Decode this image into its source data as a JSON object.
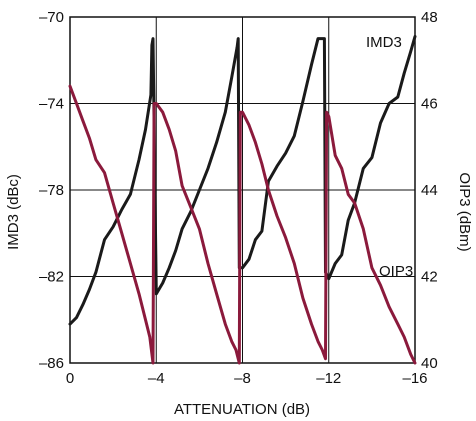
{
  "chart_data": {
    "type": "line",
    "xlabel": "ATTENUATION (dB)",
    "ylabel_left": "IMD3 (dBc)",
    "ylabel_right": "OIP3 (dBm)",
    "xlim": [
      0,
      -16
    ],
    "ylim_left": [
      -86,
      -70
    ],
    "ylim_right": [
      40,
      48
    ],
    "x_ticks": [
      "0",
      "–4",
      "–8",
      "–12",
      "–16"
    ],
    "y_left_ticks": [
      "–70",
      "–74",
      "–78",
      "–82",
      "–86"
    ],
    "y_right_ticks": [
      "48",
      "46",
      "44",
      "42",
      "40"
    ],
    "grid": true,
    "series": [
      {
        "name": "IMD3",
        "axis": "left",
        "color": "#1a1a1a",
        "x": [
          0,
          -0.3,
          -0.6,
          -0.9,
          -1.2,
          -1.6,
          -2.0,
          -2.4,
          -2.8,
          -3.2,
          -3.5,
          -3.75,
          -3.8,
          -3.85,
          -4.0,
          -4.3,
          -4.6,
          -4.9,
          -5.2,
          -5.6,
          -6.0,
          -6.4,
          -6.8,
          -7.2,
          -7.5,
          -7.75,
          -7.8,
          -7.85,
          -8.0,
          -8.3,
          -8.6,
          -8.9,
          -9.2,
          -9.6,
          -10.0,
          -10.4,
          -10.8,
          -11.2,
          -11.5,
          -11.75,
          -11.8,
          -11.85,
          -12.0,
          -12.3,
          -12.6,
          -12.9,
          -13.2,
          -13.6,
          -14.0,
          -14.4,
          -14.8,
          -15.2,
          -15.5,
          -15.8,
          -16.0
        ],
        "y": [
          -84.2,
          -83.9,
          -83.3,
          -82.6,
          -81.8,
          -80.3,
          -79.7,
          -78.9,
          -78.2,
          -76.6,
          -75.2,
          -73.6,
          -71.3,
          -71.0,
          -82.8,
          -82.3,
          -81.6,
          -80.8,
          -79.8,
          -79.0,
          -78.0,
          -77.0,
          -75.8,
          -74.4,
          -72.8,
          -71.4,
          -71.0,
          -81.6,
          -81.6,
          -81.2,
          -80.3,
          -79.9,
          -77.6,
          -76.9,
          -76.3,
          -75.5,
          -73.9,
          -72.2,
          -71.0,
          -71.0,
          -71.0,
          -81.8,
          -82.1,
          -81.4,
          -81.0,
          -79.4,
          -78.6,
          -77.0,
          -76.5,
          -74.9,
          -74.0,
          -73.7,
          -72.6,
          -71.6,
          -70.9
        ]
      },
      {
        "name": "OIP3",
        "axis": "right",
        "color": "#8b1a3c",
        "x": [
          0,
          -0.3,
          -0.6,
          -0.9,
          -1.2,
          -1.6,
          -2.0,
          -2.4,
          -2.8,
          -3.2,
          -3.5,
          -3.7,
          -3.85,
          -3.9,
          -4.0,
          -4.3,
          -4.6,
          -4.9,
          -5.2,
          -5.6,
          -6.0,
          -6.4,
          -6.8,
          -7.2,
          -7.5,
          -7.7,
          -7.85,
          -7.9,
          -8.0,
          -8.3,
          -8.6,
          -8.9,
          -9.2,
          -9.6,
          -10.0,
          -10.4,
          -10.8,
          -11.2,
          -11.5,
          -11.7,
          -11.85,
          -11.9,
          -12.0,
          -12.3,
          -12.6,
          -12.9,
          -13.2,
          -13.6,
          -14.0,
          -14.4,
          -14.8,
          -15.2,
          -15.5,
          -15.8,
          -16.0
        ],
        "y": [
          46.4,
          46.0,
          45.6,
          45.2,
          44.7,
          44.4,
          43.7,
          43.0,
          42.3,
          41.6,
          41.0,
          40.6,
          40.0,
          46.0,
          46.0,
          45.8,
          45.4,
          44.9,
          44.1,
          43.6,
          43.1,
          42.3,
          41.6,
          40.9,
          40.5,
          40.3,
          40.0,
          45.8,
          45.8,
          45.5,
          45.1,
          44.6,
          44.0,
          43.4,
          42.9,
          42.3,
          41.5,
          40.9,
          40.5,
          40.3,
          40.1,
          45.8,
          45.7,
          44.8,
          44.5,
          43.9,
          43.7,
          43.1,
          42.2,
          41.8,
          41.3,
          40.9,
          40.6,
          40.2,
          40.0
        ]
      }
    ]
  }
}
